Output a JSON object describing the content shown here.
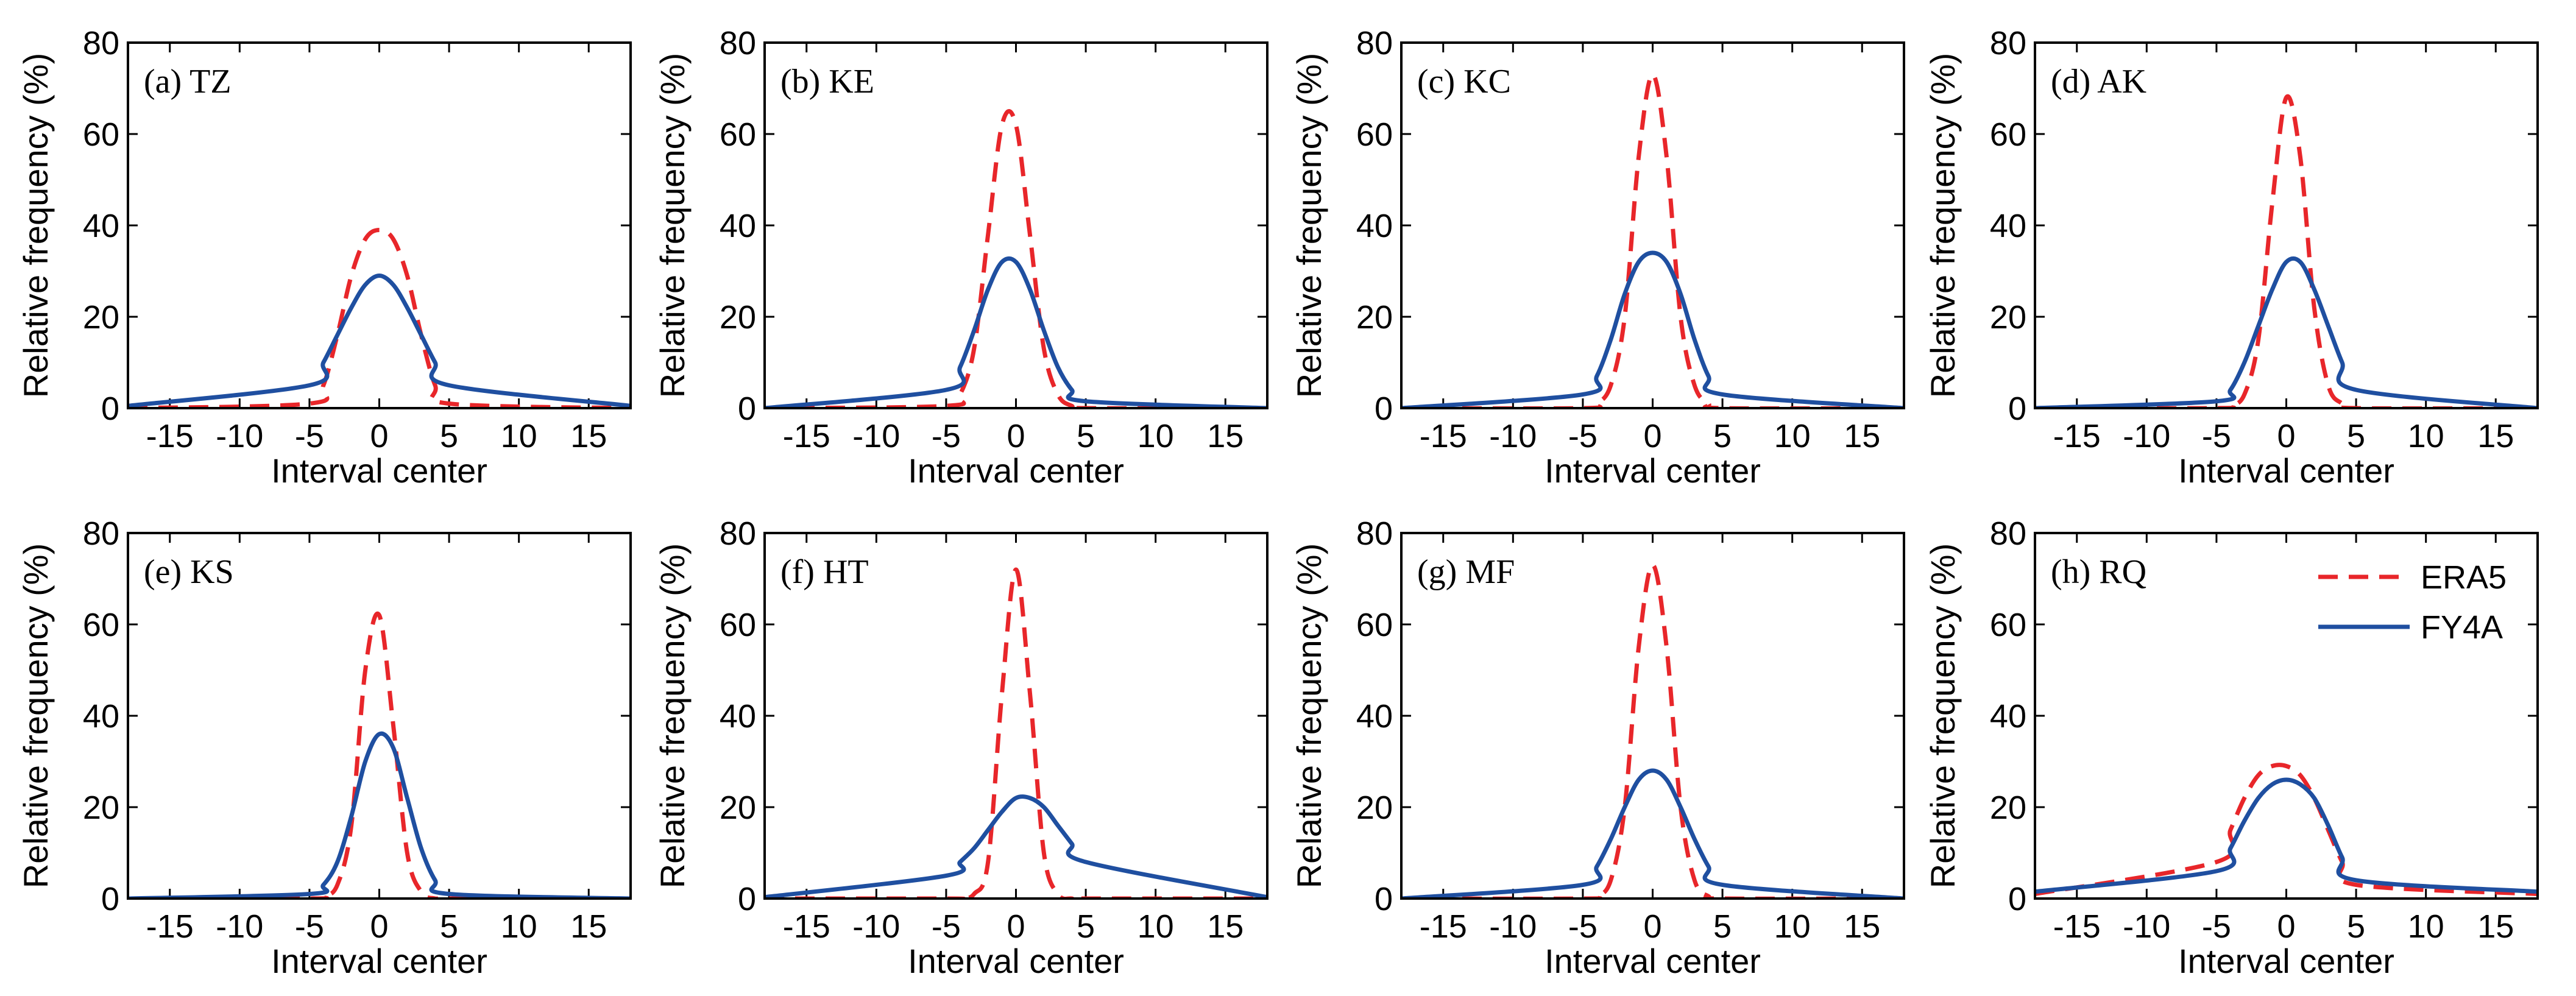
{
  "chart_data": {
    "type": "line",
    "xlabel": "Interval center",
    "ylabel": "Relative frequency (%)",
    "xlim": [
      -18,
      18
    ],
    "ylim": [
      0,
      80
    ],
    "xticks": [
      -15,
      -10,
      -5,
      0,
      5,
      10,
      15
    ],
    "yticks": [
      0,
      20,
      40,
      60,
      80
    ],
    "legend": {
      "position": "top-right",
      "panel": "(h) RQ",
      "entries": [
        "ERA5",
        "FY4A"
      ]
    },
    "colors": {
      "ERA5": "#e8262a",
      "FY4A": "#1f4fa0"
    },
    "panels": [
      {
        "label": "(a) TZ",
        "x": [
          -18,
          -5,
          -4,
          -3,
          -2,
          -1,
          0,
          1,
          2,
          3,
          4,
          5,
          18
        ],
        "series": [
          {
            "name": "ERA5",
            "values": [
              0,
              1,
              5,
              16,
              29,
              37,
              39,
              37,
              29,
              16,
              5,
              1,
              0
            ]
          },
          {
            "name": "FY4A",
            "values": [
              0.5,
              5,
              10,
              16,
              22,
              27,
              29,
              27,
              22,
              16,
              10,
              5,
              0.5
            ]
          }
        ]
      },
      {
        "label": "(b) KE",
        "x": [
          -18,
          -5,
          -4,
          -3,
          -2,
          -1,
          0,
          1,
          2,
          3,
          4,
          5,
          18
        ],
        "series": [
          {
            "name": "ERA5",
            "values": [
              0,
              0.5,
              3,
              13,
              38,
              62,
              62,
              38,
              13,
              3,
              0.5,
              0,
              0
            ]
          },
          {
            "name": "FY4A",
            "values": [
              0,
              4,
              9,
              17,
              26,
              32,
              32,
              26,
              17,
              9,
              4,
              1.5,
              0
            ]
          }
        ]
      },
      {
        "label": "(c) KC",
        "x": [
          -18,
          -5,
          -4,
          -3,
          -2,
          -1,
          0,
          1,
          2,
          3,
          4,
          5,
          18
        ],
        "series": [
          {
            "name": "ERA5",
            "values": [
              0,
              0,
              1,
              5,
              20,
              55,
              73,
              55,
              20,
              5,
              1,
              0,
              0
            ]
          },
          {
            "name": "FY4A",
            "values": [
              0,
              3,
              7,
              15,
              25,
              32,
              34,
              32,
              25,
              15,
              7,
              3,
              0
            ]
          }
        ]
      },
      {
        "label": "(d) AK",
        "x": [
          -18,
          -5,
          -4,
          -3,
          -2,
          -1,
          0,
          1,
          2,
          3,
          4,
          5,
          18
        ],
        "series": [
          {
            "name": "ERA5",
            "values": [
              0,
              0,
              0.5,
              3,
              15,
              45,
              68,
              55,
              22,
              5,
              1,
              0,
              0
            ]
          },
          {
            "name": "FY4A",
            "values": [
              0,
              1.5,
              4,
              10,
              18,
              26,
              32,
              32,
              26,
              18,
              10,
              4,
              0
            ]
          }
        ]
      },
      {
        "label": "(e) KS",
        "x": [
          -18,
          -5,
          -4,
          -3,
          -2,
          -1,
          0,
          1,
          2,
          3,
          4,
          5,
          18
        ],
        "series": [
          {
            "name": "ERA5",
            "values": [
              0,
              0,
              0.5,
              3,
              16,
              50,
              62,
              38,
              10,
              1.5,
              0,
              0,
              0
            ]
          },
          {
            "name": "FY4A",
            "values": [
              0,
              1,
              3,
              8,
              18,
              30,
              36,
              33,
              22,
              11,
              4,
              1,
              0
            ]
          }
        ]
      },
      {
        "label": "(f) HT",
        "x": [
          -18,
          -5,
          -4,
          -3,
          -2,
          -1,
          0,
          1,
          2,
          3,
          4,
          5,
          18
        ],
        "series": [
          {
            "name": "ERA5",
            "values": [
              0,
              0,
              0,
              1,
              8,
              45,
              72,
              45,
              10,
              1,
              0,
              0,
              0
            ]
          },
          {
            "name": "FY4A",
            "values": [
              0.3,
              5,
              8,
              11,
              15,
              19,
              22,
              22,
              20,
              16,
              12,
              8,
              0.3
            ]
          }
        ]
      },
      {
        "label": "(g) MF",
        "x": [
          -18,
          -5,
          -4,
          -3,
          -2,
          -1,
          0,
          1,
          2,
          3,
          4,
          5,
          18
        ],
        "series": [
          {
            "name": "ERA5",
            "values": [
              0,
              0,
              0.5,
              4,
              20,
              55,
              73,
              55,
              20,
              4,
              0.5,
              0,
              0
            ]
          },
          {
            "name": "FY4A",
            "values": [
              0,
              3,
              7,
              13,
              20,
              26,
              28,
              26,
              20,
              13,
              7,
              3,
              0
            ]
          }
        ]
      },
      {
        "label": "(h) RQ",
        "x": [
          -18,
          -5,
          -4,
          -3,
          -2,
          -1,
          0,
          1,
          2,
          3,
          4,
          5,
          18
        ],
        "series": [
          {
            "name": "ERA5",
            "values": [
              1,
              8,
              15,
              22,
              27,
              29,
              29,
              27,
              22,
              15,
              8,
              3,
              1
            ]
          },
          {
            "name": "FY4A",
            "values": [
              1.5,
              6,
              11,
              17,
              22,
              25,
              26,
              25,
              22,
              16,
              9,
              4,
              1.5
            ]
          }
        ]
      }
    ]
  }
}
